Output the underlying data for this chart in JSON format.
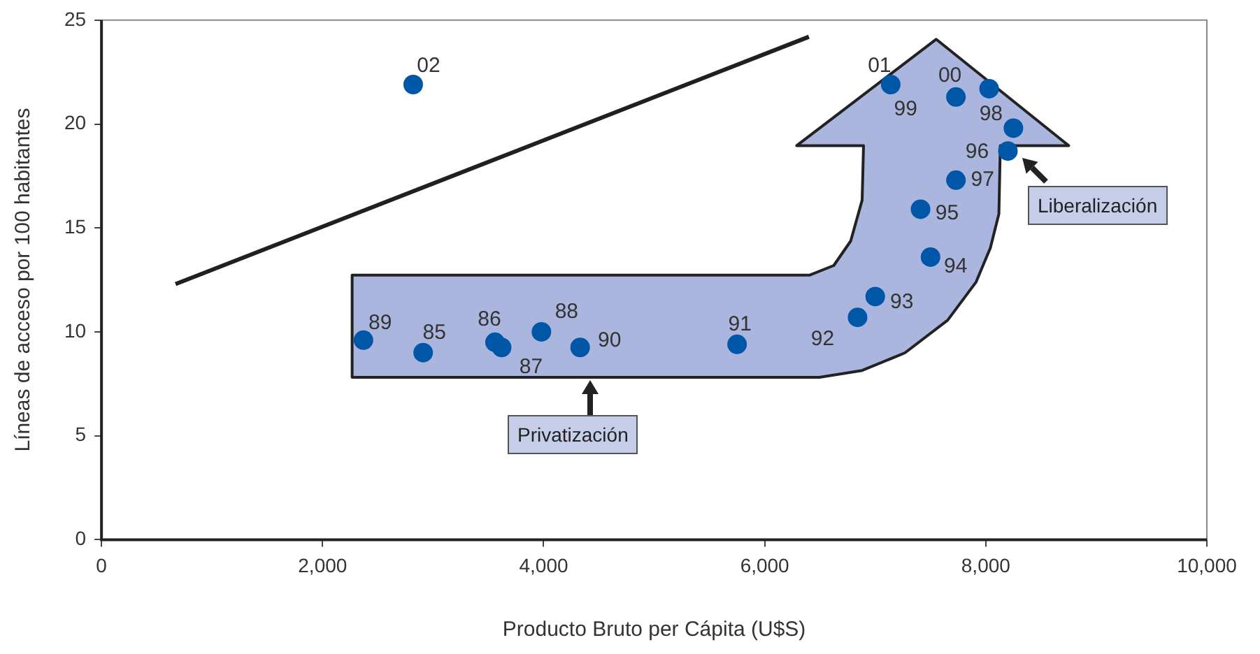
{
  "chart_data": {
    "type": "scatter",
    "xlabel": "Producto Bruto per Cápita (U$S)",
    "ylabel": "Líneas de acceso por 100 habitantes",
    "xlim": [
      0,
      10000
    ],
    "xticks": [
      0,
      {
        "value": 2000,
        "label": "2,000"
      },
      {
        "value": 4000,
        "label": "4,000"
      },
      {
        "value": 6000,
        "label": "6,000"
      },
      {
        "value": 8000,
        "label": "8,000"
      },
      {
        "value": 10000,
        "label": "10,000"
      }
    ],
    "ylim": [
      0,
      25
    ],
    "yticks": [
      0,
      5,
      10,
      15,
      20,
      25
    ],
    "grid": false,
    "legend": false,
    "annotations": [
      "Privatización",
      "Liberalización",
      {
        "text": "85",
        "x": 2910,
        "y": 9.0
      },
      {
        "text": "86",
        "x": 3560,
        "y": 9.5
      },
      {
        "text": "87",
        "x": 3620,
        "y": 9.25
      },
      {
        "text": "88",
        "x": 3980,
        "y": 10.0
      },
      {
        "text": "89",
        "x": 2370,
        "y": 9.6
      },
      {
        "text": "90",
        "x": 4330,
        "y": 9.25
      },
      {
        "text": "91",
        "x": 5750,
        "y": 9.4
      },
      {
        "text": "92",
        "x": 6840,
        "y": 10.7
      },
      {
        "text": "93",
        "x": 7000,
        "y": 11.7
      },
      {
        "text": "94",
        "x": 7500,
        "y": 13.6
      },
      {
        "text": "95",
        "x": 7410,
        "y": 15.9
      },
      {
        "text": "96",
        "x": 8200,
        "y": 18.7
      },
      {
        "text": "97",
        "x": 7730,
        "y": 17.3
      },
      {
        "text": "98",
        "x": 8250,
        "y": 19.8
      },
      {
        "text": "99",
        "x": 7730,
        "y": 21.3
      },
      {
        "text": "00",
        "x": 8030,
        "y": 21.7
      },
      {
        "text": "01",
        "x": 7140,
        "y": 21.9
      },
      {
        "text": "02",
        "x": 2820,
        "y": 21.9
      }
    ],
    "series": [
      {
        "color": "#0057a8",
        "marker": "circle",
        "x": [
          2910,
          3560,
          3620,
          3980,
          2370,
          4330,
          5750,
          6840,
          7000,
          7500,
          7410,
          8200,
          7730,
          8250,
          7730,
          8030,
          7140,
          2820
        ],
        "values": [
          9.0,
          9.5,
          9.25,
          10.0,
          9.6,
          9.25,
          9.4,
          10.7,
          11.7,
          13.6,
          15.9,
          18.7,
          17.3,
          19.8,
          21.3,
          21.7,
          21.9,
          21.9
        ]
      },
      {
        "type": "line",
        "color": "#231f20",
        "marker": "none",
        "x": [
          670,
          6400
        ],
        "values": [
          12.3,
          24.2
        ]
      }
    ]
  }
}
